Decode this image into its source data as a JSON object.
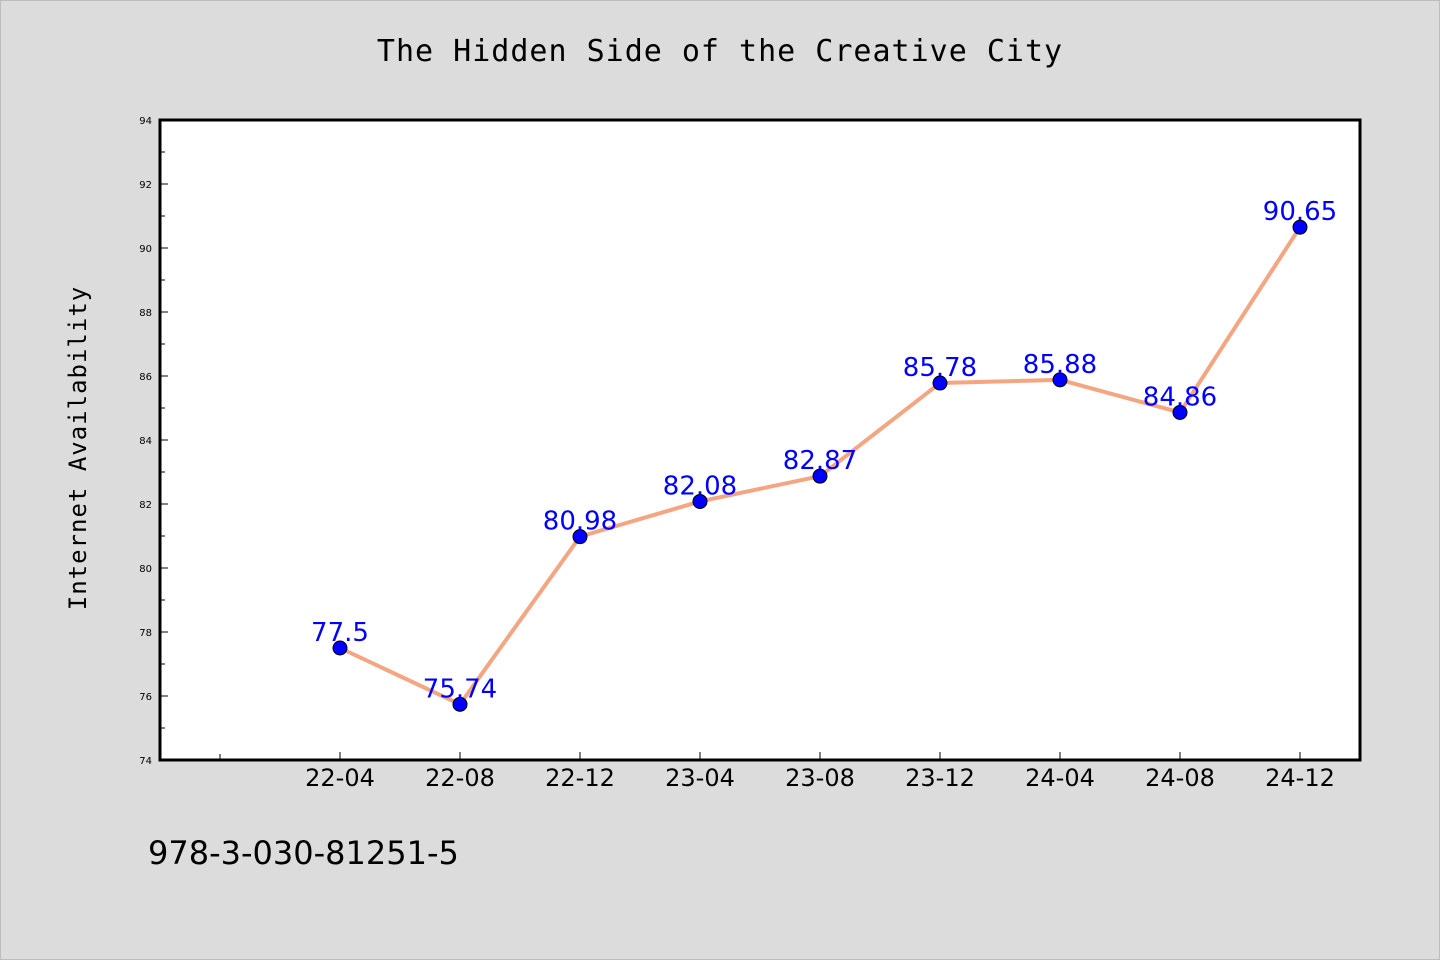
{
  "chart_data": {
    "type": "line",
    "title": "The Hidden Side of the Creative City",
    "xlabel": "",
    "ylabel": "Internet Availability",
    "categories": [
      "22-04",
      "22-08",
      "22-12",
      "23-04",
      "23-08",
      "23-12",
      "24-04",
      "24-08",
      "24-12"
    ],
    "series": [
      {
        "values": [
          77.5,
          75.74,
          80.98,
          82.08,
          82.87,
          85.78,
          85.88,
          84.86,
          90.65
        ],
        "data_labels": [
          "77.5",
          "75.74",
          "80.98",
          "82.08",
          "82.87",
          "85.78",
          "85.88",
          "84.86",
          "90.65"
        ],
        "line_color": "#f4a582",
        "marker_color": "#0000ff"
      }
    ],
    "ylim": [
      74,
      94
    ],
    "y_ticks": [
      74,
      76,
      78,
      80,
      82,
      84,
      86,
      88,
      90,
      92,
      94
    ],
    "y_tick_labels": [
      "74",
      "76",
      "78",
      "80",
      "82",
      "84",
      "86",
      "88",
      "90",
      "92",
      "94"
    ],
    "grid": false,
    "label_color": "#0000ff"
  },
  "footer_text": "978-3-030-81251-5"
}
